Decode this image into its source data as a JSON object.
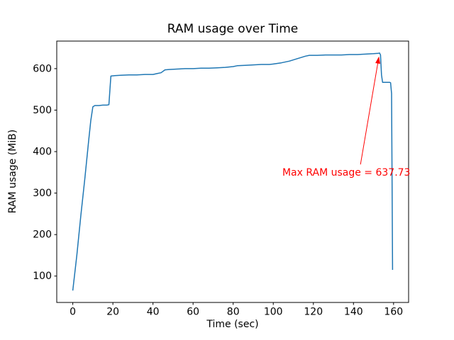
{
  "chart_data": {
    "type": "line",
    "title": "RAM usage over Time",
    "xlabel": "Time (sec)",
    "ylabel": "RAM usage (MiB)",
    "xlim": [
      -8.0,
      167.5
    ],
    "ylim": [
      36.4,
      666.4
    ],
    "xticks": [
      0,
      20,
      40,
      60,
      80,
      100,
      120,
      140,
      160
    ],
    "yticks": [
      100,
      200,
      300,
      400,
      500,
      600
    ],
    "grid": false,
    "legend": "none",
    "background_color": "#ffffff",
    "axis_color": "#000000",
    "series": [
      {
        "name": "RAM usage",
        "color": "#1f77b4",
        "points": [
          [
            0,
            65
          ],
          [
            2,
            150
          ],
          [
            4,
            245
          ],
          [
            6,
            335
          ],
          [
            8,
            430
          ],
          [
            9,
            475
          ],
          [
            10,
            508
          ],
          [
            11,
            511
          ],
          [
            13,
            511
          ],
          [
            15,
            512
          ],
          [
            17,
            512
          ],
          [
            18,
            513
          ],
          [
            19,
            582
          ],
          [
            21,
            583
          ],
          [
            24,
            584
          ],
          [
            28,
            585
          ],
          [
            32,
            585
          ],
          [
            36,
            586
          ],
          [
            40,
            586
          ],
          [
            42,
            588
          ],
          [
            44,
            590
          ],
          [
            46,
            597
          ],
          [
            48,
            598
          ],
          [
            52,
            599
          ],
          [
            56,
            600
          ],
          [
            60,
            600
          ],
          [
            64,
            601
          ],
          [
            68,
            601
          ],
          [
            72,
            602
          ],
          [
            76,
            603
          ],
          [
            80,
            605
          ],
          [
            82,
            607
          ],
          [
            86,
            608
          ],
          [
            90,
            609
          ],
          [
            94,
            610
          ],
          [
            98,
            610
          ],
          [
            100,
            611
          ],
          [
            104,
            614
          ],
          [
            108,
            618
          ],
          [
            112,
            624
          ],
          [
            116,
            630
          ],
          [
            118,
            632
          ],
          [
            122,
            632
          ],
          [
            126,
            633
          ],
          [
            130,
            633
          ],
          [
            134,
            633
          ],
          [
            138,
            634
          ],
          [
            142,
            634
          ],
          [
            146,
            635
          ],
          [
            150,
            636
          ],
          [
            152.5,
            637
          ],
          [
            153,
            637.73
          ],
          [
            153.5,
            633
          ],
          [
            154,
            585
          ],
          [
            154.5,
            567
          ],
          [
            158,
            567
          ],
          [
            158.5,
            566
          ],
          [
            159,
            540
          ],
          [
            159.5,
            115
          ]
        ]
      }
    ],
    "annotation": {
      "text": "Max RAM usage = 637.73",
      "color": "#ff0000",
      "xy": [
        153,
        637.73
      ],
      "text_xy": [
        104.5,
        342
      ],
      "arrow_tail_xy": [
        143.5,
        369
      ],
      "arrow_head_xy": [
        152.6,
        626
      ]
    }
  }
}
